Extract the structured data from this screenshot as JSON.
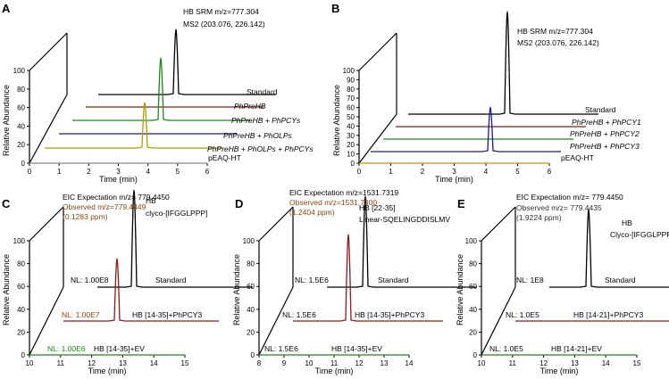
{
  "colors": {
    "black": "#000000",
    "red": "#8b1a1a",
    "green": "#1a8a1a",
    "blue": "#1a1a8a",
    "olive": "#b59a00",
    "brown": "#8b4513",
    "grey": "#888888"
  },
  "chart_data": [
    {
      "id": "A",
      "type": "line",
      "panel_letter": "A",
      "ylabel": "Relative Abundance",
      "xlabel": "Time (min)",
      "x_ticks": [
        "0",
        "1",
        "2",
        "3",
        "4",
        "5",
        "6"
      ],
      "y_ticks": [
        "0",
        "20",
        "40",
        "60",
        "80",
        "100"
      ],
      "xlim": [
        0,
        6
      ],
      "ylim": [
        0,
        100
      ],
      "peak_annotation": [
        "HB SRM m/z=777.304",
        "MS2 (203.076, 226.142)"
      ],
      "series": [
        {
          "name": "Standard",
          "color": "black",
          "peak_time": 5.0,
          "peak_height": 100,
          "italic": false
        },
        {
          "name": "PhPreHB",
          "color": "red",
          "peak_time": null,
          "peak_height": 0,
          "italic": true
        },
        {
          "name": "PhPreHB + PhPCYs",
          "color": "green",
          "peak_time": 4.5,
          "peak_height": 85,
          "italic": true
        },
        {
          "name": "PhPreHB + PhOLPs",
          "color": "blue",
          "peak_time": null,
          "peak_height": 0,
          "italic": true
        },
        {
          "name": "PhPreHB + PhOLPs + PhPCYs",
          "color": "olive",
          "peak_time": 4.0,
          "peak_height": 60,
          "italic": true
        },
        {
          "name": "pEAQ-HT",
          "color": "grey",
          "peak_time": null,
          "peak_height": 0,
          "italic": false
        }
      ]
    },
    {
      "id": "B",
      "type": "line",
      "panel_letter": "B",
      "ylabel": "Relative Abundance",
      "xlabel": "Time (min)",
      "x_ticks": [
        "0",
        "1",
        "2",
        "3",
        "4",
        "5",
        "6"
      ],
      "y_ticks": [
        "0",
        "10",
        "20",
        "30",
        "40",
        "50",
        "60",
        "70",
        "80",
        "90",
        "100"
      ],
      "xlim": [
        0,
        6
      ],
      "ylim": [
        0,
        100
      ],
      "peak_annotation": [
        "HB SRM m/z=777.304",
        "MS2 (203.076, 226.142)"
      ],
      "series": [
        {
          "name": "Standard",
          "color": "black",
          "peak_time": 4.4,
          "peak_height": 100,
          "italic": false
        },
        {
          "name": "PhPreHB + PhPCY1",
          "color": "red",
          "peak_time": null,
          "peak_height": 0,
          "italic": true
        },
        {
          "name": "PhPreHB + PhPCY2",
          "color": "green",
          "peak_time": null,
          "peak_height": 0,
          "italic": true
        },
        {
          "name": "PhPreHB + PhPCY3",
          "color": "blue",
          "peak_time": 3.9,
          "peak_height": 50,
          "italic": true
        },
        {
          "name": "pEAQ-HT",
          "color": "olive",
          "peak_time": null,
          "peak_height": 0,
          "italic": false
        }
      ]
    },
    {
      "id": "C",
      "type": "line",
      "panel_letter": "C",
      "ylabel": "Relative Abundance",
      "xlabel": "Time (min)",
      "x_ticks": [
        "10",
        "11",
        "12",
        "13",
        "14",
        "15"
      ],
      "y_ticks": [
        "0",
        "20",
        "40",
        "60",
        "80",
        "100"
      ],
      "xlim": [
        10,
        15
      ],
      "ylim": [
        0,
        100
      ],
      "header_line": "EIC Expectation m/z= 779.4450",
      "observed_lines": [
        "Observed m/z=779.4449",
        "(0.1283 ppm)"
      ],
      "peak_annotation": [
        "HB",
        "clyco-[IFGGLPPP]"
      ],
      "series": [
        {
          "name": "Standard",
          "color": "black",
          "nl": "NL: 1.00E8",
          "nl_color": "black",
          "peak_time": 13.5,
          "peak_height": 100
        },
        {
          "name": "HB [14-35]+PhPCY3",
          "color": "red",
          "nl": "NL: 1.00E7",
          "nl_color": "brown",
          "peak_time": 12.8,
          "peak_height": 85
        },
        {
          "name": "HB [14-35]+EV",
          "color": "green",
          "nl": "NL: 1.00E6",
          "nl_color": "green",
          "peak_time": null,
          "peak_height": 0
        }
      ]
    },
    {
      "id": "D",
      "type": "line",
      "panel_letter": "D",
      "ylabel": "Relative Abundance",
      "xlabel": "Time (min)",
      "x_ticks": [
        "8",
        "9",
        "10",
        "11",
        "12",
        "13",
        "14"
      ],
      "y_ticks": [
        "0",
        "20",
        "40",
        "60",
        "80",
        "100"
      ],
      "xlim": [
        8,
        14
      ],
      "ylim": [
        0,
        100
      ],
      "header_line": "EIC Expectation m/z=1531.7319",
      "observed_lines": [
        "Observed m/z=1531.7300",
        "(1.2404 ppm)"
      ],
      "peak_annotation": [
        "HB [22-35]",
        "Linear-SQELINGDDISLMV"
      ],
      "series": [
        {
          "name": "Standard",
          "color": "black",
          "nl": "NL: 1.5E6",
          "nl_color": "black",
          "peak_time": 12.1,
          "peak_height": 100
        },
        {
          "name": "HB [14-35]+PhPCY3",
          "color": "red",
          "nl": "NL: 1.5E6",
          "nl_color": "black",
          "peak_time": 11.3,
          "peak_height": 85
        },
        {
          "name": "HB [14-35]+EV",
          "color": "green",
          "nl": "NL: 1.5E6",
          "nl_color": "black",
          "peak_time": null,
          "peak_height": 0
        }
      ]
    },
    {
      "id": "E",
      "type": "line",
      "panel_letter": "E",
      "ylabel": "Relative Abundance",
      "xlabel": "Time (min)",
      "x_ticks": [
        "10",
        "11",
        "12",
        "13",
        "14",
        "15"
      ],
      "y_ticks": [
        "0",
        "20",
        "40",
        "60",
        "80",
        "100"
      ],
      "xlim": [
        10,
        15
      ],
      "ylim": [
        0,
        100
      ],
      "header_line": "EIC Expectation m/z= 779.4450",
      "observed_lines": [
        "Observed m/z= 779.4435",
        "(1.9224 ppm)"
      ],
      "peak_annotation": [
        "HB",
        "Clyco-[IFGGLPPP]"
      ],
      "series": [
        {
          "name": "Standard",
          "color": "black",
          "nl": "NL: 1E8",
          "nl_color": "black",
          "peak_time": 13.5,
          "peak_height": 100
        },
        {
          "name": "HB [14-21]+PhPCY3",
          "color": "red",
          "nl": "NL: 1.0E5",
          "nl_color": "black",
          "peak_time": null,
          "peak_height": 0
        },
        {
          "name": "HB [14-21]+EV",
          "color": "green",
          "nl": "NL: 1.0E5",
          "nl_color": "black",
          "peak_time": null,
          "peak_height": 0
        }
      ]
    }
  ]
}
